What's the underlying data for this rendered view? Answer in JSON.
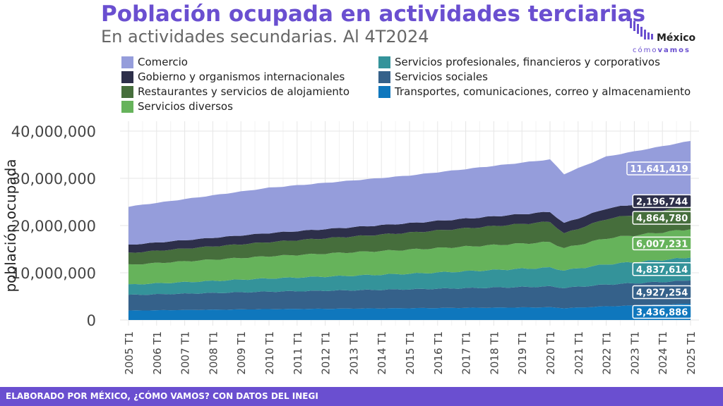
{
  "title": "Población ocupada en actividades terciarias",
  "subtitle": "En actividades secundarias. Al 4T2024",
  "logo": {
    "name": "México",
    "tagline_a": "cómo",
    "tagline_b": "vamos"
  },
  "footer": "ELABORADO POR MÉXICO, ¿CÓMO VAMOS? CON DATOS DEL INEGI",
  "chart_data": {
    "type": "area",
    "stacked": true,
    "ylabel": "población ocupada",
    "xlabel": "",
    "ylim": [
      0,
      41000000
    ],
    "yticks": [
      0,
      10000000,
      20000000,
      30000000,
      40000000
    ],
    "ytick_labels": [
      "0",
      "10,000,000",
      "20,000,000",
      "30,000,000",
      "40,000,000"
    ],
    "xticks": [
      "2005 T1",
      "2006 T1",
      "2007 T1",
      "2008 T1",
      "2009 T1",
      "2010 T1",
      "2011 T1",
      "2012 T1",
      "2013 T1",
      "2014 T1",
      "2015 T1",
      "2016 T1",
      "2017 T1",
      "2018 T1",
      "2019 T1",
      "2020 T1",
      "2021 T1",
      "2022 T1",
      "2023 T1",
      "2024 T1",
      "2025 T1"
    ],
    "x_start": 2005.0,
    "x_end": 2025.0,
    "x_step": 0.25,
    "legend_position": "top",
    "grid": true,
    "legend": [
      {
        "name": "Comercio",
        "color": "#959ddb",
        "col": 0,
        "row": 0
      },
      {
        "name": "Gobierno y organismos internacionales",
        "color": "#2d2f4a",
        "col": 0,
        "row": 1
      },
      {
        "name": "Restaurantes y servicios de alojamiento",
        "color": "#466e3c",
        "col": 0,
        "row": 2
      },
      {
        "name": "Servicios diversos",
        "color": "#66b35b",
        "col": 0,
        "row": 3
      },
      {
        "name": "Servicios profesionales, financieros y corporativos",
        "color": "#34939a",
        "col": 1,
        "row": 0
      },
      {
        "name": "Servicios sociales",
        "color": "#35618a",
        "col": 1,
        "row": 1
      },
      {
        "name": "Transportes, comunicaciones, correo y almacenamiento",
        "color": "#0f77bd",
        "col": 1,
        "row": 2
      }
    ],
    "stack_order": [
      "Transportes, comunicaciones, correo y almacenamiento",
      "Servicios sociales",
      "Servicios profesionales, financieros y corporativos",
      "Servicios diversos",
      "Restaurantes y servicios de alojamiento",
      "Gobierno y organismos internacionales",
      "Comercio"
    ],
    "series_anchors": {
      "Transportes, comunicaciones, correo y almacenamiento": [
        [
          2005.0,
          2000000
        ],
        [
          2010.0,
          2300000
        ],
        [
          2015.0,
          2500000
        ],
        [
          2020.0,
          2700000
        ],
        [
          2020.5,
          2500000
        ],
        [
          2022.0,
          2900000
        ],
        [
          2025.0,
          3436886
        ]
      ],
      "Servicios sociales": [
        [
          2005.0,
          3300000
        ],
        [
          2010.0,
          3700000
        ],
        [
          2015.0,
          4000000
        ],
        [
          2020.0,
          4400000
        ],
        [
          2020.5,
          4300000
        ],
        [
          2022.0,
          4600000
        ],
        [
          2025.0,
          4927254
        ]
      ],
      "Servicios profesionales, financieros y corporativos": [
        [
          2005.0,
          2200000
        ],
        [
          2010.0,
          2800000
        ],
        [
          2015.0,
          3300000
        ],
        [
          2020.0,
          4000000
        ],
        [
          2020.5,
          3700000
        ],
        [
          2022.0,
          4300000
        ],
        [
          2025.0,
          4837614
        ]
      ],
      "Servicios diversos": [
        [
          2005.0,
          4200000
        ],
        [
          2010.0,
          4700000
        ],
        [
          2015.0,
          5100000
        ],
        [
          2020.0,
          5400000
        ],
        [
          2020.5,
          4700000
        ],
        [
          2022.0,
          5500000
        ],
        [
          2025.0,
          6007231
        ]
      ],
      "Restaurantes y servicios de alojamiento": [
        [
          2005.0,
          2500000
        ],
        [
          2010.0,
          3000000
        ],
        [
          2015.0,
          3600000
        ],
        [
          2020.0,
          4300000
        ],
        [
          2020.5,
          3100000
        ],
        [
          2022.0,
          4100000
        ],
        [
          2025.0,
          4864780
        ]
      ],
      "Gobierno y organismos internacionales": [
        [
          2005.0,
          1700000
        ],
        [
          2010.0,
          1900000
        ],
        [
          2015.0,
          2000000
        ],
        [
          2020.0,
          2100000
        ],
        [
          2020.5,
          2200000
        ],
        [
          2022.0,
          2200000
        ],
        [
          2025.0,
          2196744
        ]
      ],
      "Comercio": [
        [
          2005.0,
          8100000
        ],
        [
          2010.0,
          9600000
        ],
        [
          2015.0,
          10100000
        ],
        [
          2020.0,
          11100000
        ],
        [
          2020.5,
          10400000
        ],
        [
          2022.0,
          11000000
        ],
        [
          2025.0,
          11641419
        ]
      ]
    },
    "end_labels": [
      {
        "series": "Comercio",
        "text": "11,641,419"
      },
      {
        "series": "Gobierno y organismos internacionales",
        "text": "2,196,744"
      },
      {
        "series": "Restaurantes y servicios de alojamiento",
        "text": "4,864,780"
      },
      {
        "series": "Servicios diversos",
        "text": "6,007,231"
      },
      {
        "series": "Servicios profesionales, financieros y corporativos",
        "text": "4,837,614"
      },
      {
        "series": "Servicios sociales",
        "text": "4,927,254"
      },
      {
        "series": "Transportes, comunicaciones, correo y almacenamiento",
        "text": "3,436,886"
      }
    ]
  }
}
